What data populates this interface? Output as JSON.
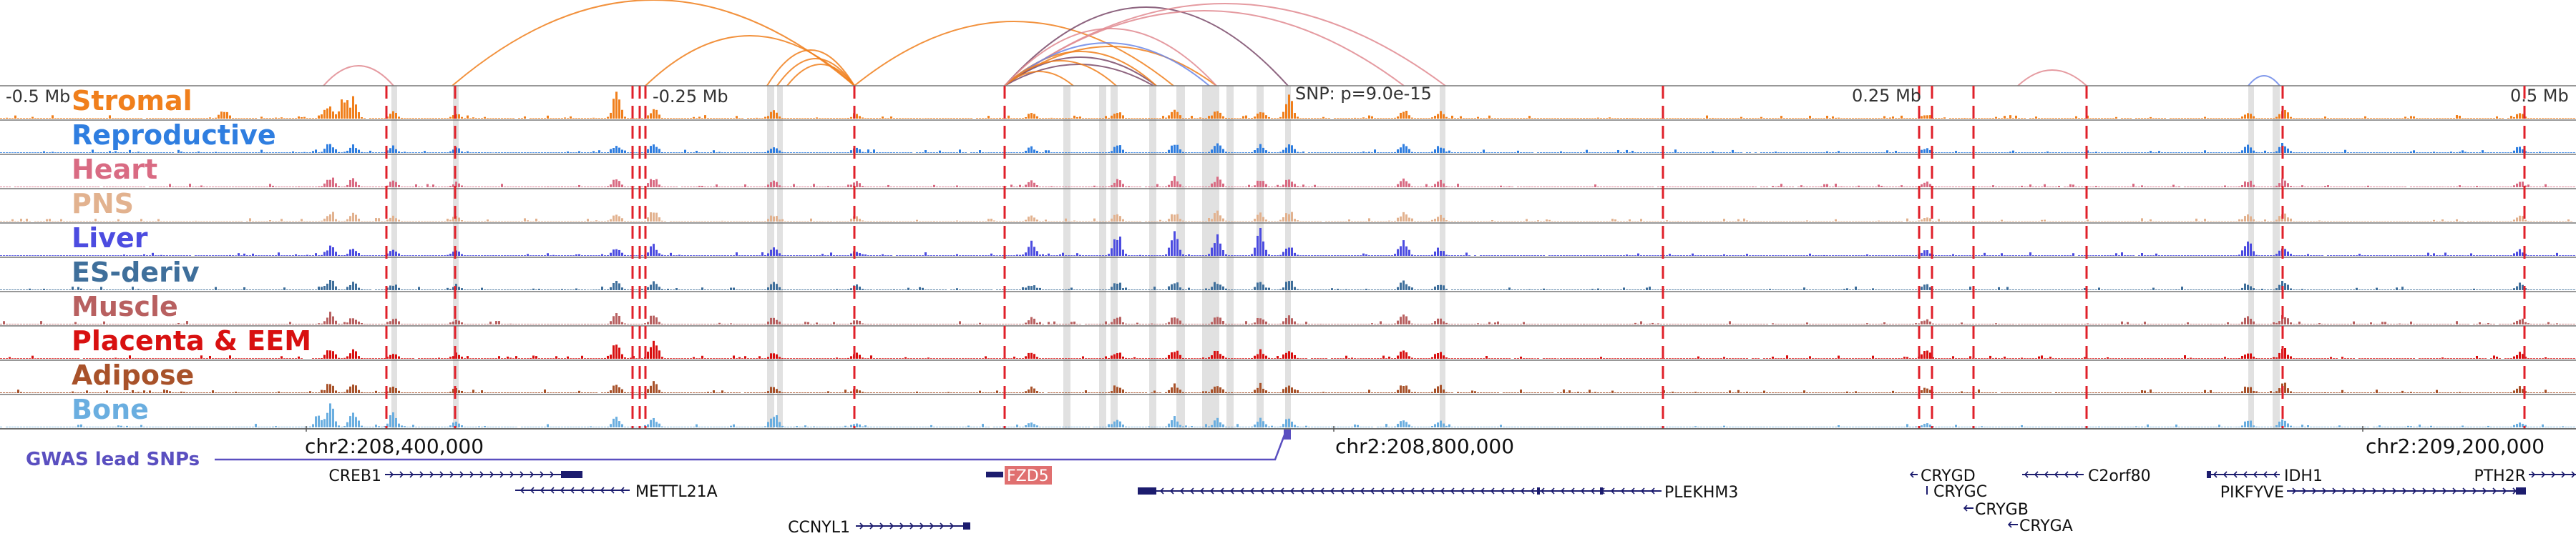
{
  "tracks": [
    {
      "label": "Stromal",
      "color": "#f07f1c"
    },
    {
      "label": "Reproductive",
      "color": "#2f7ee0"
    },
    {
      "label": "Heart",
      "color": "#d96b83"
    },
    {
      "label": "PNS",
      "color": "#e2b28f"
    },
    {
      "label": "Liver",
      "color": "#4c4ce0"
    },
    {
      "label": "ES-deriv",
      "color": "#3f6f9b"
    },
    {
      "label": "Muscle",
      "color": "#b86060"
    },
    {
      "label": "Placenta & EEM",
      "color": "#d81010"
    },
    {
      "label": "Adipose",
      "color": "#a8522a"
    },
    {
      "label": "Bone",
      "color": "#6aaee0"
    }
  ],
  "distance_marks": [
    "-0.5 Mb",
    "-0.25 Mb",
    "0.25 Mb",
    "0.5 Mb"
  ],
  "snp_label": "SNP: p=9.0e-15",
  "coordinates": [
    "chr2:208,400,000",
    "chr2:208,800,000",
    "chr2:209,200,000"
  ],
  "gwas_label": "GWAS lead SNPs",
  "genes": [
    {
      "name": "CREB1",
      "dir": "+"
    },
    {
      "name": "METTL21A",
      "dir": "-"
    },
    {
      "name": "CCNYL1",
      "dir": "+"
    },
    {
      "name": "FZD5",
      "dir": "-",
      "highlight": true
    },
    {
      "name": "PLEKHM3",
      "dir": "-"
    },
    {
      "name": "CRYGD",
      "dir": "-"
    },
    {
      "name": "CRYGC",
      "dir": "-"
    },
    {
      "name": "CRYGB",
      "dir": "-"
    },
    {
      "name": "CRYGA",
      "dir": "-"
    },
    {
      "name": "C2orf80",
      "dir": "-"
    },
    {
      "name": "IDH1",
      "dir": "-"
    },
    {
      "name": "PIKFYVE",
      "dir": "+"
    },
    {
      "name": "PTH2R",
      "dir": "+"
    }
  ],
  "colors": {
    "highlight_red": "#e0202a",
    "gwas": "#5a4fc0",
    "gene": "#1c1c6e",
    "fzd5_box": "#e07070",
    "arc_orange": "#f07f1c",
    "arc_blue": "#6b87e8",
    "arc_dark": "#7a4a6a",
    "arc_pink": "#e08a90"
  }
}
